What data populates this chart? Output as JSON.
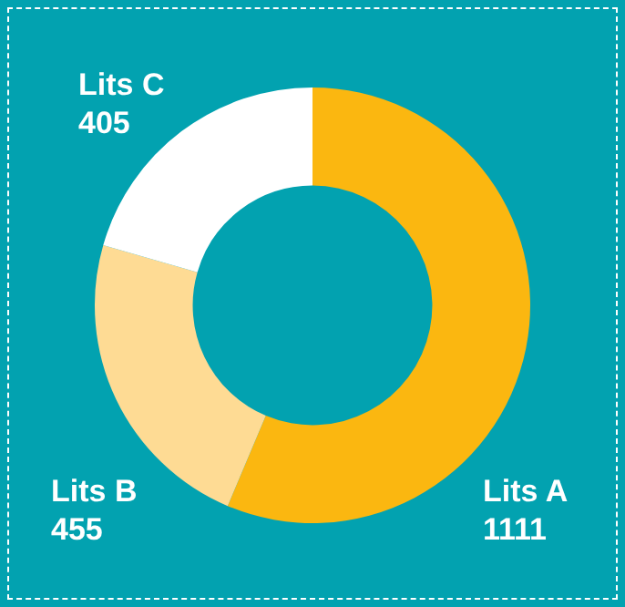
{
  "chart_data": {
    "type": "donut",
    "categories": [
      "Lits A",
      "Lits B",
      "Lits C"
    ],
    "values": [
      1111,
      455,
      405
    ],
    "colors": [
      "#fbb710",
      "#fedb94",
      "#ffffff"
    ],
    "data_labels": true,
    "legend": false
  }
}
